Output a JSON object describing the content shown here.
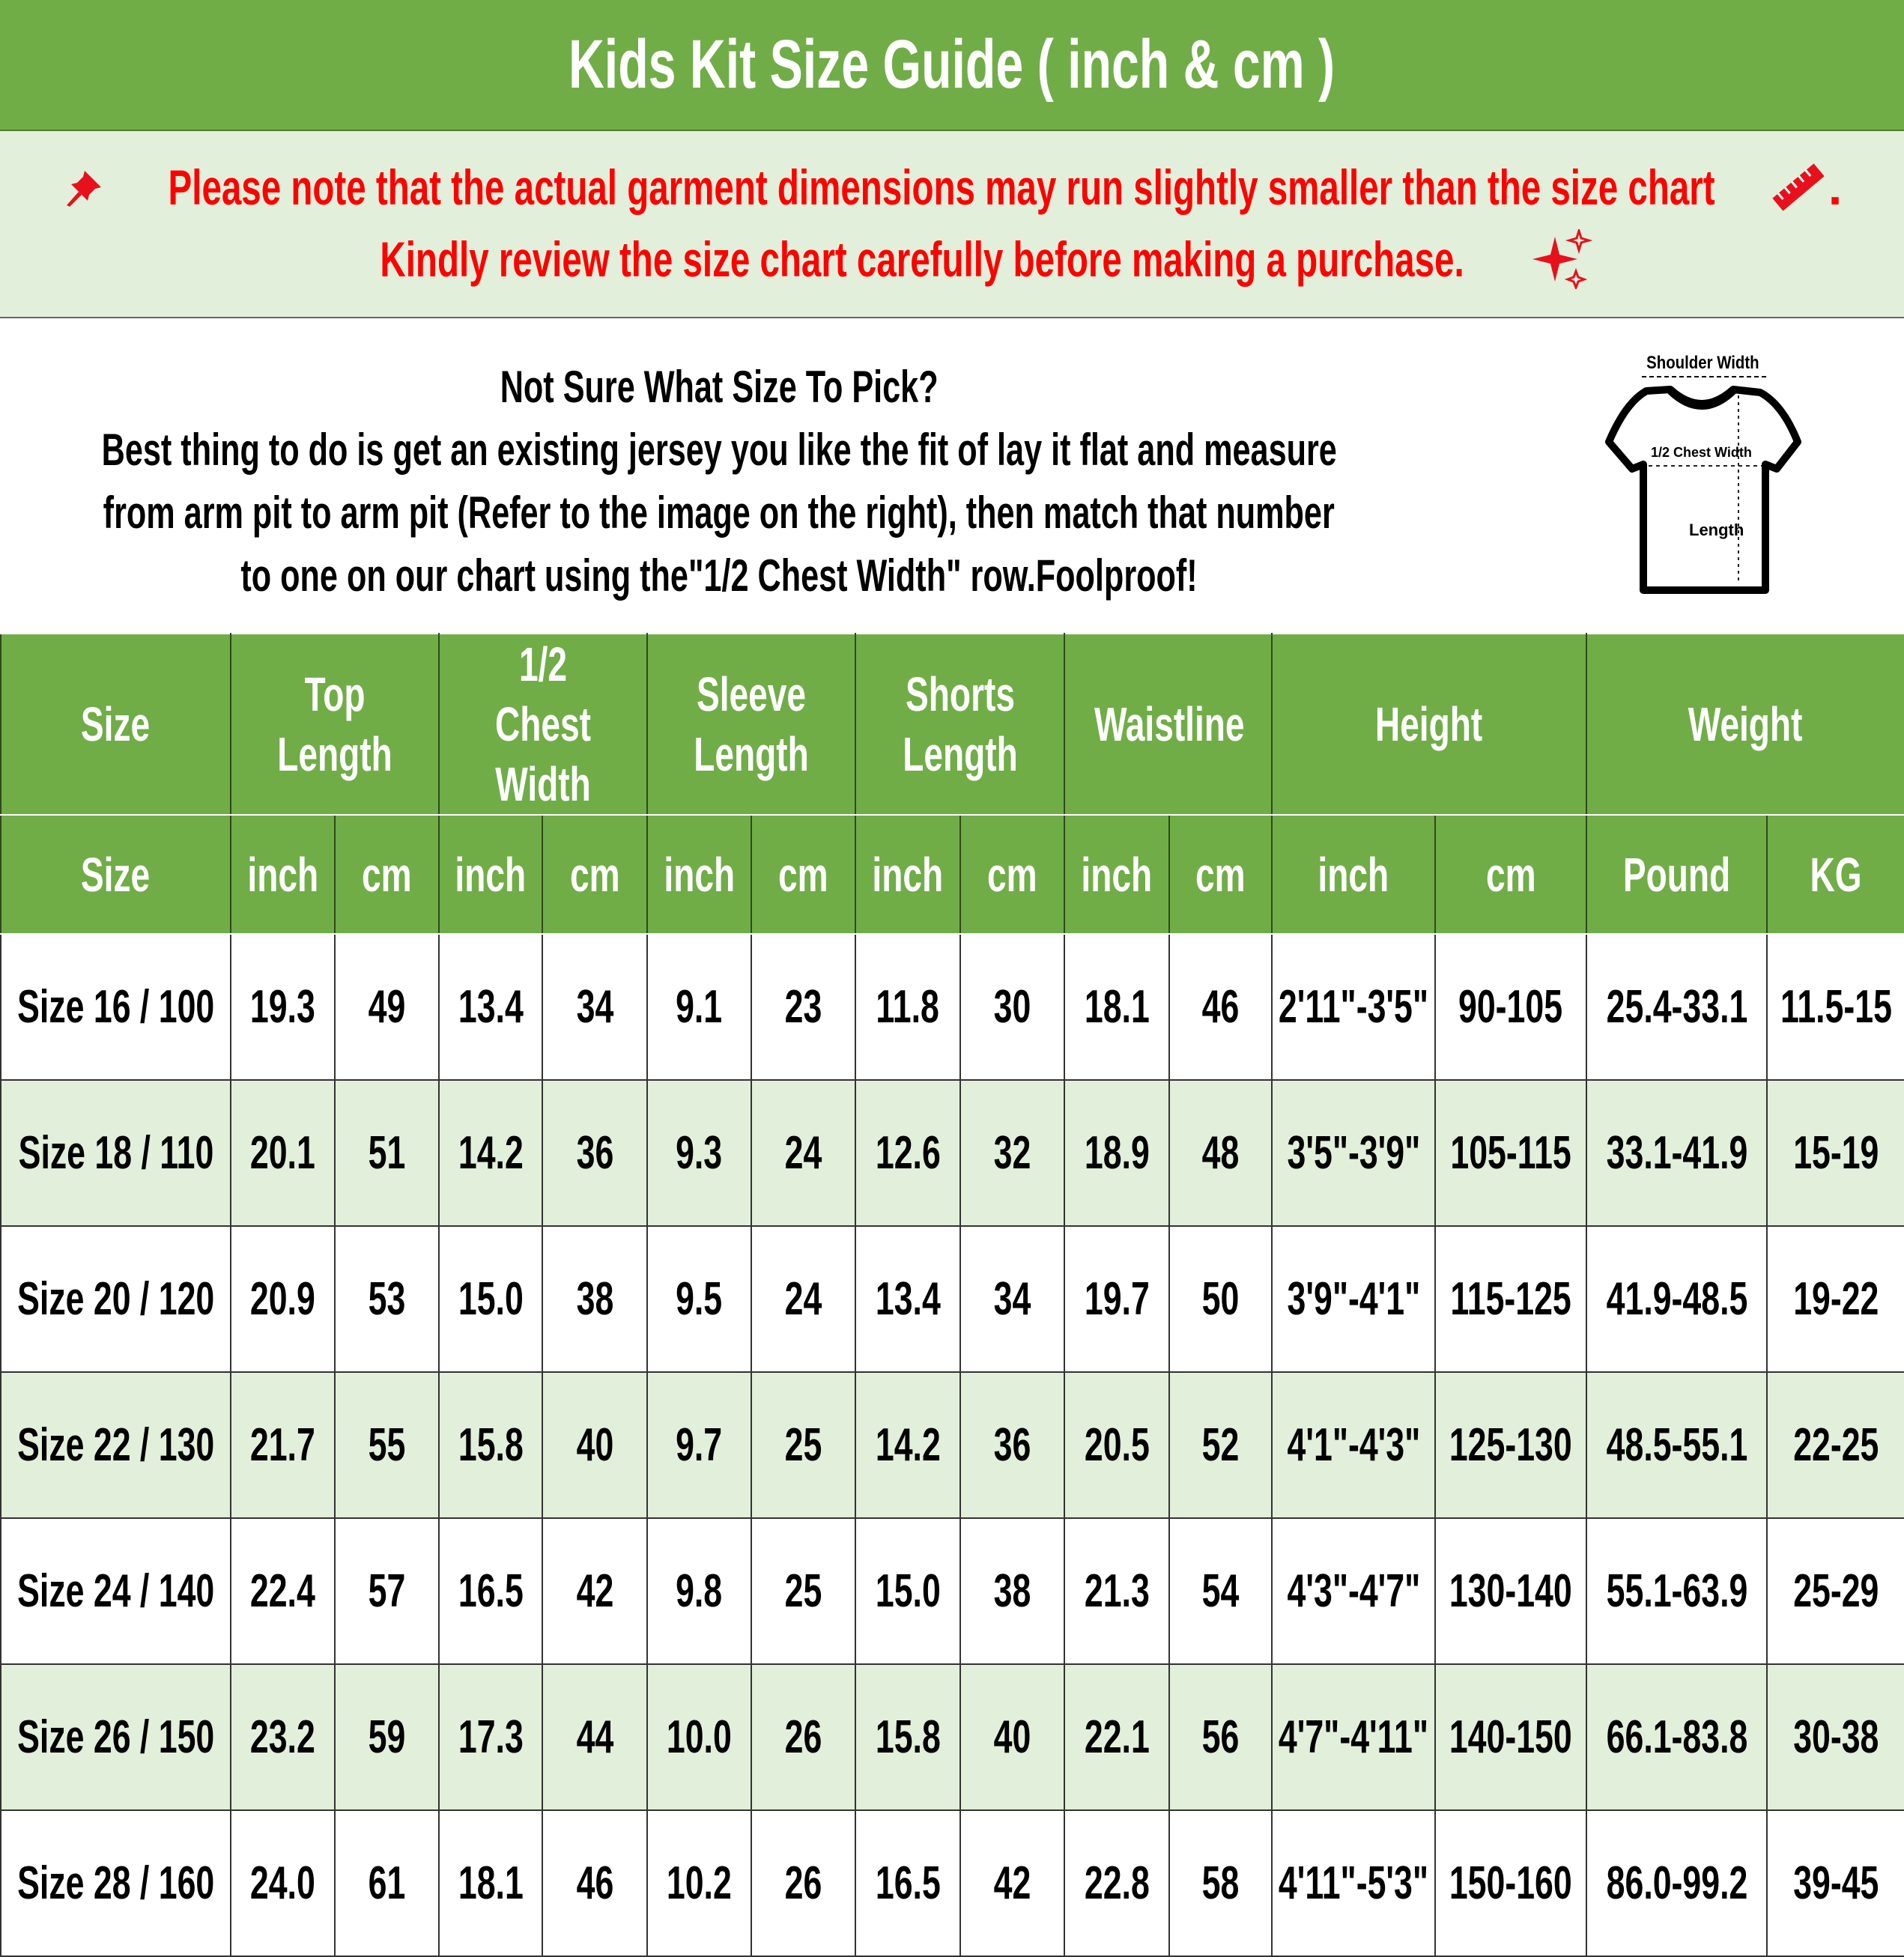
{
  "title": "Kids Kit Size Guide ( inch & cm )",
  "notice": {
    "line1": "Please note that the actual garment dimensions may run slightly smaller than the size chart",
    "line1_end": ".",
    "line2": "Kindly review the size chart carefully before making a purchase.",
    "icons": [
      "pushpin-icon",
      "ruler-icon",
      "sparkles-icon"
    ],
    "color": "#ff0000"
  },
  "info": {
    "heading": "Not Sure What Size To Pick?",
    "lines": [
      "Best thing to do is get an existing jersey you like the fit of lay it flat and measure",
      "from arm pit to arm pit (Refer to the image on the right), then match that number",
      "to one on our chart using the\"1/2 Chest Width\" row.Foolproof!"
    ],
    "diagram": {
      "shoulder": "Shoulder Width",
      "chest": "1/2 Chest Width",
      "length": "Length"
    }
  },
  "table": {
    "groups": [
      "Size",
      "Top Length",
      "1/2 Chest Width",
      "Sleeve Length",
      "Shorts Length",
      "Waistline",
      "Height",
      "Weight"
    ],
    "units": [
      "Size",
      "inch",
      "cm",
      "inch",
      "cm",
      "inch",
      "cm",
      "inch",
      "cm",
      "inch",
      "cm",
      "inch",
      "cm",
      "Pound",
      "KG"
    ],
    "rows": [
      [
        "Size 16 / 100",
        "19.3",
        "49",
        "13.4",
        "34",
        "9.1",
        "23",
        "11.8",
        "30",
        "18.1",
        "46",
        "2'11\"-3'5\"",
        "90-105",
        "25.4-33.1",
        "11.5-15"
      ],
      [
        "Size 18 / 110",
        "20.1",
        "51",
        "14.2",
        "36",
        "9.3",
        "24",
        "12.6",
        "32",
        "18.9",
        "48",
        "3'5\"-3'9\"",
        "105-115",
        "33.1-41.9",
        "15-19"
      ],
      [
        "Size 20 / 120",
        "20.9",
        "53",
        "15.0",
        "38",
        "9.5",
        "24",
        "13.4",
        "34",
        "19.7",
        "50",
        "3'9\"-4'1\"",
        "115-125",
        "41.9-48.5",
        "19-22"
      ],
      [
        "Size 22 / 130",
        "21.7",
        "55",
        "15.8",
        "40",
        "9.7",
        "25",
        "14.2",
        "36",
        "20.5",
        "52",
        "4'1\"-4'3\"",
        "125-130",
        "48.5-55.1",
        "22-25"
      ],
      [
        "Size 24 / 140",
        "22.4",
        "57",
        "16.5",
        "42",
        "9.8",
        "25",
        "15.0",
        "38",
        "21.3",
        "54",
        "4'3\"-4'7\"",
        "130-140",
        "55.1-63.9",
        "25-29"
      ],
      [
        "Size 26 / 150",
        "23.2",
        "59",
        "17.3",
        "44",
        "10.0",
        "26",
        "15.8",
        "40",
        "22.1",
        "56",
        "4'7\"-4'11\"",
        "140-150",
        "66.1-83.8",
        "30-38"
      ],
      [
        "Size 28 / 160",
        "24.0",
        "61",
        "18.1",
        "46",
        "10.2",
        "26",
        "16.5",
        "42",
        "22.8",
        "58",
        "4'11\"-5'3\"",
        "150-160",
        "86.0-99.2",
        "39-45"
      ]
    ]
  },
  "colors": {
    "header_green": "#70ad47",
    "row_alt": "#e2efda",
    "text_red": "#ff0000"
  }
}
